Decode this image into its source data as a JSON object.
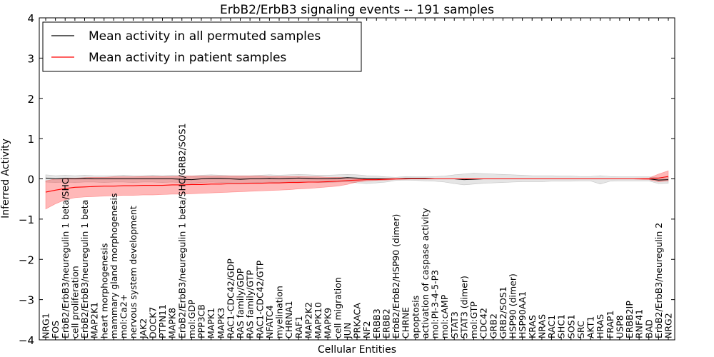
{
  "chart_data": {
    "type": "line",
    "title": "ErbB2/ErbB3 signaling events -- 191 samples",
    "xlabel": "Cellular Entities",
    "ylabel": "Inferred Activity",
    "ylim": [
      -4,
      4
    ],
    "yticks": [
      -4,
      -3,
      -2,
      -1,
      0,
      1,
      2,
      3,
      4
    ],
    "ytick_labels": [
      "−4",
      "−3",
      "−2",
      "−1",
      "0",
      "1",
      "2",
      "3",
      "4"
    ],
    "legend": {
      "placement": "top-left",
      "entries": [
        {
          "label": "Mean activity in all permuted samples",
          "color": "#000000"
        },
        {
          "label": "Mean activity in patient samples",
          "color": "#ff0000"
        }
      ]
    },
    "categories": [
      "NRG1",
      "FOS",
      "ErbB2/ErbB3/neuregulin 1 beta/SHC",
      "cell proliferation",
      "ErbB2/ErbB3/neuregulin 1 beta",
      "MAP2K1",
      "heart morphogenesis",
      "mammary gland morphogenesis",
      "mol:Ca2+",
      "nervous system development",
      "JAK2",
      "DOCK7",
      "PTPN11",
      "MAPK8",
      "ErbB2/ErbB3/neuregulin 1 beta/SHC/GRB2/SOS1",
      "mol:GDP",
      "PPP3CB",
      "MAPK1",
      "MAPK3",
      "RAC1-CDC42/GDP",
      "RAS family/GDP",
      "RAS family/GTP",
      "RAC1-CDC42/GTP",
      "NFATC4",
      "myelination",
      "CHRNA1",
      "RAF1",
      "MAP2K2",
      "MAPK10",
      "MAPK9",
      "cell migration",
      "JUN",
      "PRKACA",
      "NF2",
      "ERBB3",
      "ERBB2",
      "ErbB2/ErbB2/HSP90 (dimer)",
      "CHRNE",
      "apoptosis",
      "activation of caspase activity",
      "mol:PI-3-4-5-P3",
      "mol:cAMP",
      "STAT3",
      "STAT3 (dimer)",
      "mol:GTP",
      "CDC42",
      "GRB2",
      "GRB2/SOS1",
      "HSP90 (dimer)",
      "HSP90AA1",
      "KRAS",
      "NRAS",
      "RAC1",
      "SHC1",
      "SOS1",
      "SRC",
      "AKT1",
      "HRAS",
      "FRAP1",
      "USP8",
      "ERBB2IP",
      "RNF41",
      "BAD",
      "ErbB2/ErbB3/neuregulin 2",
      "NRG2"
    ],
    "series": [
      {
        "name": "Mean activity in patient samples",
        "color": "#ff0000",
        "values": [
          -0.33,
          -0.28,
          -0.24,
          -0.21,
          -0.2,
          -0.19,
          -0.18,
          -0.18,
          -0.17,
          -0.17,
          -0.16,
          -0.16,
          -0.16,
          -0.15,
          -0.15,
          -0.14,
          -0.14,
          -0.13,
          -0.13,
          -0.12,
          -0.12,
          -0.11,
          -0.11,
          -0.1,
          -0.1,
          -0.09,
          -0.09,
          -0.08,
          -0.08,
          -0.07,
          -0.06,
          -0.04,
          -0.03,
          -0.02,
          -0.02,
          -0.01,
          0,
          0,
          0,
          0,
          0,
          0,
          0,
          0,
          0,
          0,
          0,
          0,
          0,
          0,
          0,
          0,
          0,
          0,
          0,
          0,
          0,
          0,
          0,
          0,
          0,
          0,
          0,
          0.02,
          0.06
        ],
        "band_upper": [
          -0.05,
          0.0,
          0.02,
          0.02,
          0.03,
          0.04,
          0.04,
          0.05,
          0.05,
          0.05,
          0.06,
          0.06,
          0.06,
          0.06,
          0.07,
          0.07,
          0.07,
          0.07,
          0.07,
          0.07,
          0.07,
          0.07,
          0.07,
          0.06,
          0.06,
          0.06,
          0.06,
          0.05,
          0.05,
          0.04,
          0.04,
          0.03,
          0.02,
          0.01,
          0.01,
          0.01,
          0.01,
          0.0,
          0.0,
          0.0,
          0.0,
          0.0,
          0.0,
          0.0,
          0.0,
          0.0,
          0.0,
          0.0,
          0.0,
          0.0,
          0.0,
          0.0,
          0.0,
          0.0,
          0.0,
          0.0,
          0.0,
          0.0,
          0.0,
          0.0,
          0.0,
          0.01,
          0.02,
          0.12,
          0.2
        ],
        "band_lower": [
          -0.75,
          -0.62,
          -0.52,
          -0.47,
          -0.45,
          -0.44,
          -0.43,
          -0.42,
          -0.41,
          -0.41,
          -0.4,
          -0.4,
          -0.39,
          -0.38,
          -0.38,
          -0.37,
          -0.36,
          -0.35,
          -0.34,
          -0.33,
          -0.32,
          -0.31,
          -0.3,
          -0.29,
          -0.28,
          -0.27,
          -0.25,
          -0.24,
          -0.22,
          -0.2,
          -0.18,
          -0.14,
          -0.08,
          -0.05,
          -0.04,
          -0.03,
          -0.02,
          -0.01,
          0,
          0,
          0,
          0,
          0,
          0,
          0,
          0,
          0,
          0,
          0,
          0,
          0,
          0,
          0,
          0,
          0,
          0,
          0,
          0,
          0,
          0,
          0,
          -0.01,
          -0.02,
          -0.07,
          -0.05
        ]
      },
      {
        "name": "Mean activity in all permuted samples",
        "color": "#000000",
        "values": [
          0.02,
          0.0,
          0.01,
          0.0,
          0.01,
          0.0,
          0.0,
          0.0,
          0.0,
          0.0,
          0.0,
          0.0,
          0.0,
          0.0,
          -0.01,
          -0.02,
          0.0,
          0.01,
          0.01,
          0.0,
          -0.01,
          0.0,
          0.0,
          0.01,
          0.0,
          0.01,
          0.02,
          0.01,
          0.0,
          0.0,
          0.01,
          0.03,
          0.02,
          0.0,
          0.0,
          0.0,
          0.0,
          0.01,
          0.01,
          0.01,
          0.0,
          0.0,
          0.0,
          -0.02,
          -0.01,
          0.0,
          0.0,
          0.0,
          0.0,
          0.0,
          0.0,
          0.0,
          0.0,
          0.0,
          0.0,
          0.0,
          0.0,
          0.0,
          0.0,
          0.0,
          0.0,
          0.0,
          0.0,
          -0.03,
          -0.02
        ],
        "band_upper": [
          0.1,
          0.08,
          0.09,
          0.08,
          0.09,
          0.08,
          0.08,
          0.08,
          0.09,
          0.08,
          0.08,
          0.09,
          0.08,
          0.09,
          0.08,
          0.07,
          0.09,
          0.1,
          0.09,
          0.08,
          0.08,
          0.08,
          0.09,
          0.1,
          0.09,
          0.1,
          0.11,
          0.1,
          0.09,
          0.09,
          0.1,
          0.11,
          0.1,
          0.08,
          0.07,
          0.05,
          0.04,
          0.06,
          0.05,
          0.05,
          0.06,
          0.07,
          0.1,
          0.12,
          0.14,
          0.13,
          0.12,
          0.11,
          0.1,
          0.09,
          0.08,
          0.08,
          0.08,
          0.07,
          0.07,
          0.06,
          0.06,
          0.08,
          0.06,
          0.05,
          0.05,
          0.05,
          0.05,
          0.03,
          0.05
        ],
        "band_lower": [
          -0.08,
          -0.09,
          -0.08,
          -0.09,
          -0.08,
          -0.08,
          -0.09,
          -0.08,
          -0.08,
          -0.09,
          -0.08,
          -0.08,
          -0.09,
          -0.08,
          -0.1,
          -0.11,
          -0.09,
          -0.08,
          -0.09,
          -0.1,
          -0.11,
          -0.1,
          -0.09,
          -0.08,
          -0.09,
          -0.08,
          -0.07,
          -0.08,
          -0.09,
          -0.09,
          -0.08,
          -0.07,
          -0.1,
          -0.12,
          -0.1,
          -0.08,
          -0.04,
          -0.03,
          -0.04,
          -0.05,
          -0.06,
          -0.08,
          -0.12,
          -0.15,
          -0.13,
          -0.11,
          -0.1,
          -0.09,
          -0.08,
          -0.07,
          -0.07,
          -0.07,
          -0.06,
          -0.06,
          -0.06,
          -0.05,
          -0.05,
          -0.13,
          -0.06,
          -0.05,
          -0.05,
          -0.05,
          -0.05,
          -0.12,
          -0.11
        ]
      }
    ]
  }
}
